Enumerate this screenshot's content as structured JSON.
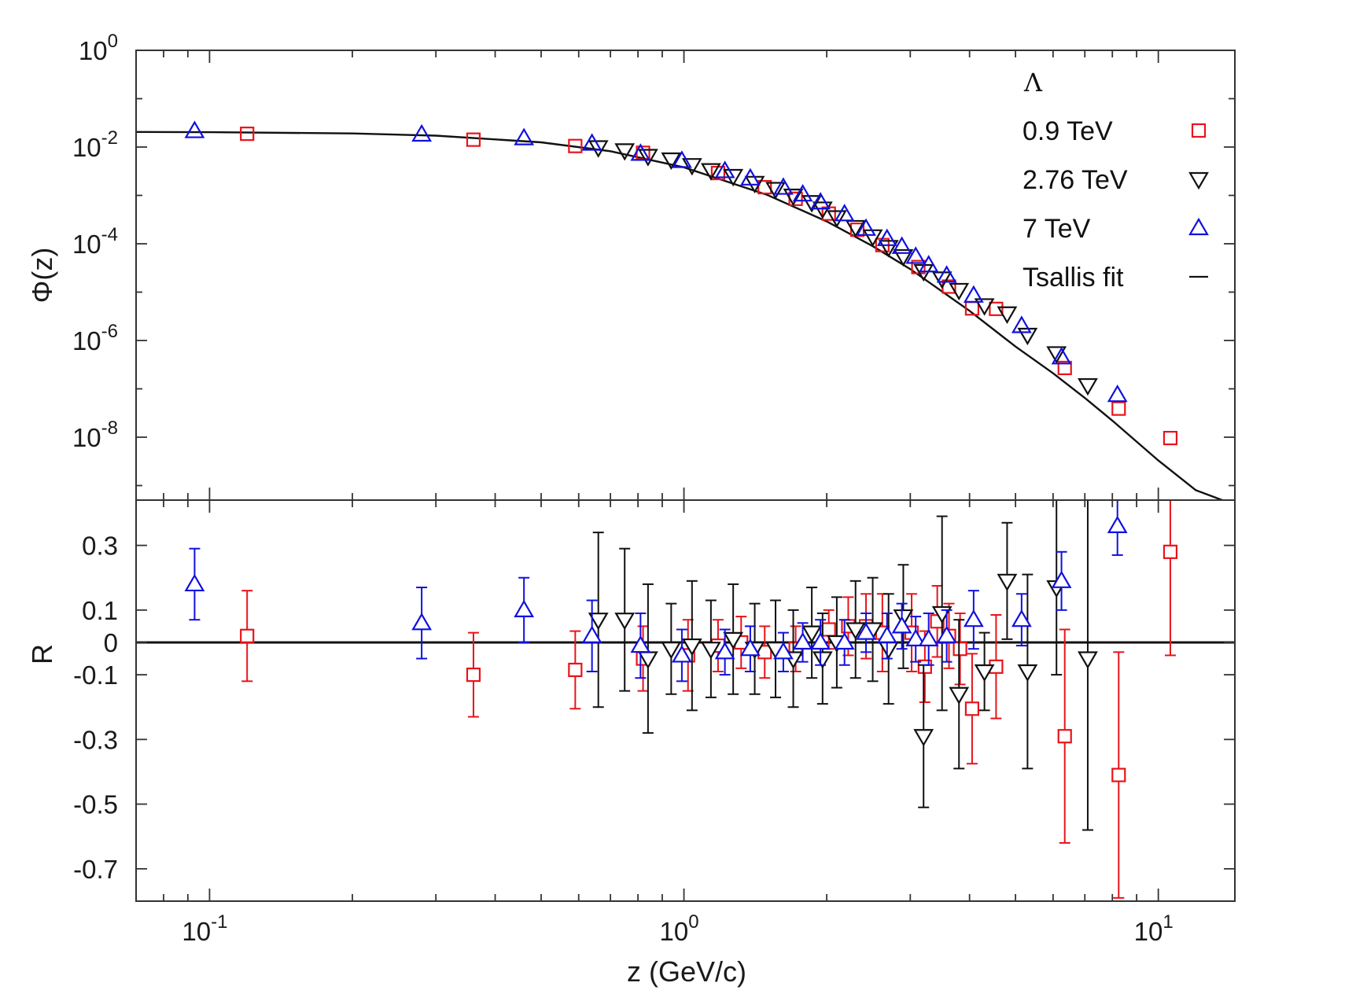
{
  "chart_data": [
    {
      "panel": "upper",
      "type": "scatter",
      "xscale": "log",
      "yscale": "log",
      "xlim": [
        0.07,
        14.5
      ],
      "ylim": [
        5e-10,
        1
      ],
      "ylabel": "Φ(z)",
      "yticks": [
        {
          "value": 1,
          "base": "10",
          "exp": "0"
        },
        {
          "value": 0.01,
          "base": "10",
          "exp": "-2"
        },
        {
          "value": 0.0001,
          "base": "10",
          "exp": "-4"
        },
        {
          "value": 1e-06,
          "base": "10",
          "exp": "-6"
        },
        {
          "value": 1e-08,
          "base": "10",
          "exp": "-8"
        }
      ],
      "legend": {
        "title": "Λ",
        "position": "top-right",
        "entries": [
          {
            "label": "0.9 TeV",
            "marker": "square",
            "color": "#e8141a"
          },
          {
            "label": "2.76 TeV",
            "marker": "triangle-down",
            "color": "#111111"
          },
          {
            "label": "7 TeV",
            "marker": "triangle-up",
            "color": "#1010e0"
          },
          {
            "label": "Tsallis fit",
            "marker": "line",
            "color": "#111111"
          }
        ]
      },
      "fit_curve": {
        "name": "Tsallis fit",
        "x": [
          0.07,
          0.1,
          0.2,
          0.3,
          0.5,
          0.7,
          1.0,
          1.5,
          2.0,
          2.5,
          3.0,
          4.0,
          5.0,
          6.0,
          7.0,
          8.0,
          10.0,
          12.0,
          14.5
        ],
        "y": [
          0.0205,
          0.0203,
          0.0191,
          0.0172,
          0.0125,
          0.0082,
          0.0038,
          0.00102,
          0.00029,
          8.9e-05,
          3e-05,
          4.1e-06,
          7.5e-07,
          2.1e-07,
          6.5e-08,
          2.2e-08,
          3.3e-09,
          8e-10,
          4e-10
        ]
      },
      "series": [
        {
          "name": "0.9 TeV",
          "x": [
            0.12,
            0.36,
            0.59,
            0.82,
            1.18,
            1.48,
            1.72,
            2.02,
            2.32,
            2.62,
            3.12,
            3.62,
            4.05,
            4.55,
            6.35,
            8.25,
            10.6
          ],
          "y": [
            0.0188,
            0.0142,
            0.0105,
            0.0076,
            0.0029,
            0.00148,
            0.00085,
            0.00042,
            0.000195,
            9.4e-05,
            3.3e-05,
            1.3e-05,
            4.6e-06,
            4.5e-06,
            2.7e-07,
            3.9e-08,
            9.6e-09
          ]
        },
        {
          "name": "2.76 TeV",
          "x": [
            0.66,
            0.75,
            0.84,
            0.94,
            1.04,
            1.14,
            1.27,
            1.41,
            1.56,
            1.7,
            1.86,
            1.96,
            2.1,
            2.3,
            2.5,
            2.7,
            2.9,
            3.2,
            3.5,
            3.8,
            4.3,
            4.8,
            5.3,
            6.1,
            7.1
          ],
          "y": [
            0.0098,
            0.0085,
            0.0065,
            0.0055,
            0.0042,
            0.0033,
            0.0025,
            0.0018,
            0.00135,
            0.00098,
            0.00072,
            0.00053,
            0.00035,
            0.00022,
            0.000141,
            8.5e-05,
            5.5e-05,
            2.7e-05,
            1.9e-05,
            1.1e-05,
            5.3e-06,
            3.6e-06,
            1.3e-06,
            5.4e-07,
            1.18e-07
          ]
        },
        {
          "name": "7 TeV",
          "x": [
            0.093,
            0.28,
            0.46,
            0.64,
            0.81,
            0.99,
            1.22,
            1.38,
            1.62,
            1.78,
            1.94,
            2.18,
            2.42,
            2.68,
            2.88,
            3.08,
            3.28,
            3.58,
            4.08,
            5.15,
            6.25,
            8.2
          ],
          "y": [
            0.0215,
            0.0182,
            0.0153,
            0.0118,
            0.0073,
            0.0052,
            0.0032,
            0.00225,
            0.00145,
            0.00105,
            0.00072,
            0.00041,
            0.000205,
            0.000126,
            8.7e-05,
            5.4e-05,
            3.6e-05,
            2.2e-05,
            8.5e-06,
            2e-06,
            4.5e-07,
            7.5e-08
          ]
        }
      ]
    },
    {
      "panel": "lower",
      "type": "scatter",
      "xscale": "log",
      "xlim": [
        0.07,
        14.5
      ],
      "ylim": [
        -0.8,
        0.44
      ],
      "xlabel": "z (GeV/c)",
      "ylabel": "R",
      "zero_line": true,
      "xticks": [
        {
          "value": 0.1,
          "base": "10",
          "exp": "-1"
        },
        {
          "value": 1,
          "base": "10",
          "exp": "0"
        },
        {
          "value": 10,
          "base": "10",
          "exp": "1"
        }
      ],
      "yticks": [
        {
          "value": 0.3,
          "label": "0.3"
        },
        {
          "value": 0.1,
          "label": "0.1"
        },
        {
          "value": 0,
          "label": "0"
        },
        {
          "value": -0.1,
          "label": "-0.1"
        },
        {
          "value": -0.3,
          "label": "-0.3"
        },
        {
          "value": -0.5,
          "label": "-0.5"
        },
        {
          "value": -0.7,
          "label": "-0.7"
        }
      ],
      "series": [
        {
          "name": "0.9 TeV",
          "x": [
            0.12,
            0.36,
            0.59,
            0.82,
            1.02,
            1.18,
            1.32,
            1.48,
            1.72,
            2.02,
            2.22,
            2.42,
            2.62,
            3.02,
            3.22,
            3.42,
            3.62,
            3.82,
            4.05,
            4.55,
            6.35,
            8.25,
            10.6
          ],
          "y": [
            0.02,
            -0.1,
            -0.085,
            -0.05,
            -0.04,
            -0.01,
            0.0,
            -0.03,
            -0.02,
            0.04,
            0.05,
            0.05,
            0.03,
            0.03,
            -0.075,
            0.065,
            0.02,
            -0.02,
            -0.205,
            -0.075,
            -0.29,
            -0.41,
            0.28
          ],
          "yerr": [
            0.14,
            0.13,
            0.12,
            0.1,
            0.11,
            0.08,
            0.08,
            0.08,
            0.07,
            0.06,
            0.09,
            0.1,
            0.12,
            0.12,
            0.11,
            0.11,
            0.1,
            0.11,
            0.17,
            0.16,
            0.33,
            0.38,
            0.32
          ]
        },
        {
          "name": "2.76 TeV",
          "x": [
            0.66,
            0.75,
            0.84,
            0.94,
            1.04,
            1.14,
            1.27,
            1.41,
            1.56,
            1.7,
            1.86,
            1.96,
            2.1,
            2.3,
            2.5,
            2.7,
            2.9,
            3.2,
            3.5,
            3.8,
            4.3,
            4.8,
            5.3,
            6.1,
            7.1
          ],
          "y": [
            0.07,
            0.07,
            -0.05,
            -0.02,
            -0.01,
            -0.02,
            0.01,
            -0.02,
            -0.02,
            -0.05,
            0.03,
            -0.05,
            0.0,
            0.04,
            0.04,
            -0.02,
            0.08,
            -0.29,
            0.09,
            -0.16,
            -0.09,
            0.19,
            -0.09,
            0.17,
            -0.05
          ],
          "yerr": [
            0.27,
            0.22,
            0.23,
            0.14,
            0.2,
            0.15,
            0.17,
            0.14,
            0.15,
            0.15,
            0.14,
            0.14,
            0.14,
            0.15,
            0.16,
            0.17,
            0.16,
            0.22,
            0.3,
            0.23,
            0.12,
            0.18,
            0.3,
            0.27,
            0.53
          ]
        },
        {
          "name": "7 TeV",
          "x": [
            0.093,
            0.28,
            0.46,
            0.64,
            0.81,
            0.99,
            1.22,
            1.38,
            1.62,
            1.78,
            1.94,
            2.18,
            2.42,
            2.68,
            2.88,
            3.08,
            3.28,
            3.58,
            4.08,
            5.15,
            6.25,
            8.2
          ],
          "y": [
            0.18,
            0.06,
            0.1,
            0.02,
            -0.01,
            -0.04,
            -0.03,
            -0.02,
            -0.03,
            0.0,
            0.0,
            0.0,
            0.03,
            0.02,
            0.05,
            0.01,
            0.01,
            0.02,
            0.07,
            0.07,
            0.19,
            0.36
          ],
          "yerr": [
            0.11,
            0.11,
            0.1,
            0.11,
            0.1,
            0.08,
            0.07,
            0.07,
            0.06,
            0.06,
            0.07,
            0.07,
            0.06,
            0.07,
            0.07,
            0.07,
            0.08,
            0.08,
            0.09,
            0.08,
            0.09,
            0.09
          ]
        }
      ]
    }
  ]
}
